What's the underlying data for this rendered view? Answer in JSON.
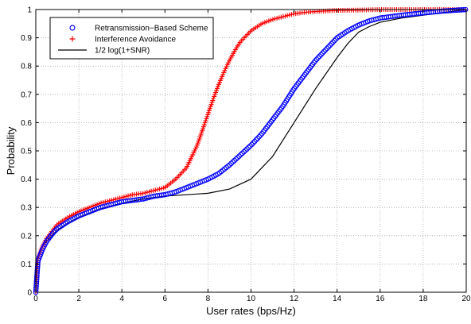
{
  "chart_data": {
    "type": "line",
    "title": "",
    "xlabel": "User rates (bps/Hz)",
    "ylabel": "Probability",
    "xlim": [
      0,
      20
    ],
    "ylim": [
      0,
      1
    ],
    "xticks": [
      0,
      2,
      4,
      6,
      8,
      10,
      12,
      14,
      16,
      18,
      20
    ],
    "yticks": [
      0,
      0.1,
      0.2,
      0.3,
      0.4,
      0.5,
      0.6,
      0.7,
      0.8,
      0.9,
      1
    ],
    "grid": true,
    "legend_position": "top-left",
    "series": [
      {
        "name": "Retransmission−Based Scheme",
        "marker": "circle",
        "color": "#0000ff",
        "x": [
          0,
          0.1,
          0.3,
          0.5,
          0.8,
          1,
          1.5,
          2,
          2.5,
          3,
          3.5,
          4,
          4.5,
          5,
          5.5,
          6,
          6.5,
          7,
          7.5,
          8,
          8.5,
          9,
          9.5,
          10,
          10.5,
          11,
          11.5,
          12,
          12.5,
          13,
          13.5,
          14,
          14.5,
          15,
          15.5,
          16,
          16.5,
          17,
          18,
          19,
          20
        ],
        "y": [
          0,
          0.11,
          0.15,
          0.18,
          0.21,
          0.225,
          0.25,
          0.27,
          0.285,
          0.3,
          0.31,
          0.32,
          0.325,
          0.33,
          0.34,
          0.345,
          0.355,
          0.37,
          0.385,
          0.4,
          0.42,
          0.45,
          0.485,
          0.52,
          0.56,
          0.61,
          0.66,
          0.72,
          0.77,
          0.82,
          0.86,
          0.9,
          0.925,
          0.945,
          0.96,
          0.97,
          0.975,
          0.98,
          0.988,
          0.995,
          1
        ]
      },
      {
        "name": "Interference Avoidance",
        "marker": "plus",
        "color": "#ff0000",
        "x": [
          0,
          0.1,
          0.3,
          0.5,
          0.8,
          1,
          1.5,
          2,
          2.5,
          3,
          3.5,
          4,
          4.5,
          5,
          5.5,
          6,
          6.5,
          7,
          7.25,
          7.5,
          7.75,
          8,
          8.25,
          8.5,
          8.75,
          9,
          9.25,
          9.5,
          9.75,
          10,
          10.5,
          11,
          11.5,
          12,
          12.5,
          13,
          14,
          15,
          16,
          17,
          18,
          19,
          20
        ],
        "y": [
          0,
          0.12,
          0.16,
          0.19,
          0.22,
          0.24,
          0.265,
          0.285,
          0.3,
          0.315,
          0.325,
          0.335,
          0.345,
          0.35,
          0.36,
          0.37,
          0.4,
          0.44,
          0.48,
          0.52,
          0.575,
          0.63,
          0.685,
          0.735,
          0.78,
          0.82,
          0.855,
          0.885,
          0.905,
          0.925,
          0.95,
          0.965,
          0.975,
          0.985,
          0.99,
          0.993,
          0.997,
          0.998,
          1,
          1,
          1,
          1,
          1
        ]
      },
      {
        "name": "1/2 log(1+SNR)",
        "marker": "none",
        "color": "#000000",
        "x": [
          0,
          0.05,
          0.2,
          0.5,
          1,
          1.5,
          2,
          3,
          4,
          5,
          6,
          7,
          8,
          9,
          10,
          11,
          12,
          13,
          14,
          14.5,
          15,
          15.5,
          16,
          17,
          18,
          19,
          20
        ],
        "y": [
          0,
          0.1,
          0.15,
          0.18,
          0.22,
          0.245,
          0.265,
          0.295,
          0.315,
          0.33,
          0.34,
          0.345,
          0.35,
          0.365,
          0.4,
          0.48,
          0.6,
          0.72,
          0.83,
          0.88,
          0.92,
          0.94,
          0.955,
          0.97,
          0.98,
          0.99,
          1
        ]
      }
    ]
  }
}
